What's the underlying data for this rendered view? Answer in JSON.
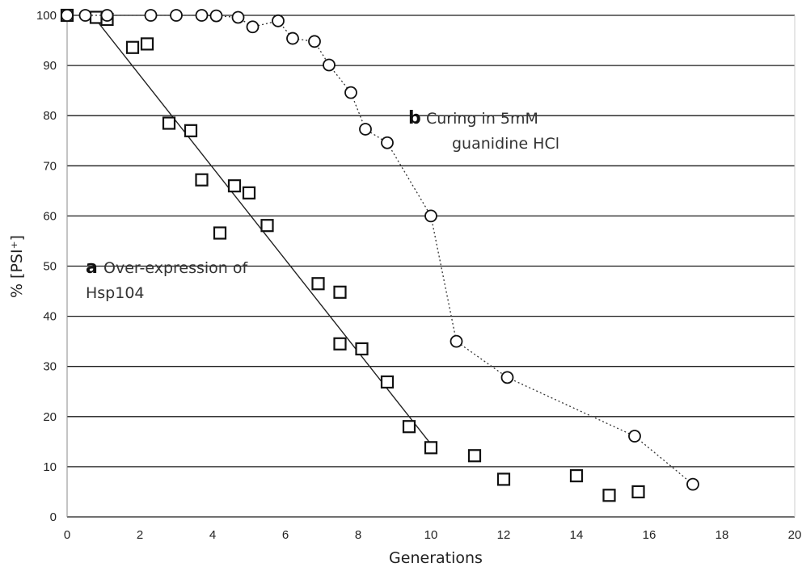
{
  "chart_data": {
    "type": "scatter",
    "title": "",
    "xlabel": "Generations",
    "ylabel": "% [PSI⁺]",
    "xlim": [
      0,
      20
    ],
    "ylim": [
      0,
      100
    ],
    "xticks": [
      0,
      2,
      4,
      6,
      8,
      10,
      12,
      14,
      16,
      18,
      20
    ],
    "yticks": [
      0,
      10,
      20,
      30,
      40,
      50,
      60,
      70,
      80,
      90,
      100
    ],
    "grid": "horizontal",
    "legend": "none",
    "series": [
      {
        "marker": "square",
        "color": "#111111",
        "points": [
          [
            0.0,
            100.0
          ],
          [
            0.8,
            99.6
          ],
          [
            1.1,
            99.2
          ],
          [
            1.8,
            93.6
          ],
          [
            2.2,
            94.3
          ],
          [
            2.8,
            78.5
          ],
          [
            3.4,
            77.0
          ],
          [
            3.7,
            67.2
          ],
          [
            4.2,
            56.6
          ],
          [
            4.6,
            66.0
          ],
          [
            5.0,
            64.6
          ],
          [
            5.5,
            58.1
          ],
          [
            6.9,
            46.5
          ],
          [
            7.5,
            44.8
          ],
          [
            7.5,
            34.5
          ],
          [
            8.1,
            33.5
          ],
          [
            8.8,
            26.9
          ],
          [
            9.4,
            18.0
          ],
          [
            10.0,
            13.8
          ],
          [
            11.2,
            12.2
          ],
          [
            12.0,
            7.5
          ],
          [
            14.0,
            8.2
          ],
          [
            14.9,
            4.3
          ],
          [
            15.7,
            5.0
          ]
        ],
        "trendline": {
          "style": "solid",
          "x": [
            0.7,
            10.0
          ],
          "y": [
            100.0,
            14.5
          ]
        }
      },
      {
        "marker": "circle",
        "color": "#111111",
        "line": "dotted",
        "points": [
          [
            0.0,
            100.0
          ],
          [
            0.5,
            100.0
          ],
          [
            1.1,
            100.0
          ],
          [
            2.3,
            100.0
          ],
          [
            3.0,
            100.0
          ],
          [
            3.7,
            100.0
          ],
          [
            4.1,
            99.9
          ],
          [
            4.7,
            99.6
          ],
          [
            5.1,
            97.7
          ],
          [
            5.8,
            98.9
          ],
          [
            6.2,
            95.4
          ],
          [
            6.8,
            94.8
          ],
          [
            7.2,
            90.1
          ],
          [
            7.8,
            84.6
          ],
          [
            8.2,
            77.3
          ],
          [
            8.8,
            74.6
          ],
          [
            10.0,
            60.0
          ],
          [
            10.7,
            35.0
          ],
          [
            12.1,
            27.8
          ],
          [
            15.6,
            16.1
          ],
          [
            17.2,
            6.5
          ]
        ]
      }
    ],
    "annotations": [
      {
        "letter": "a",
        "lines": [
          "Over-expression of",
          "Hsp104"
        ]
      },
      {
        "letter": "b",
        "lines": [
          "Curing in 5mM",
          "guanidine HCl"
        ]
      }
    ]
  }
}
